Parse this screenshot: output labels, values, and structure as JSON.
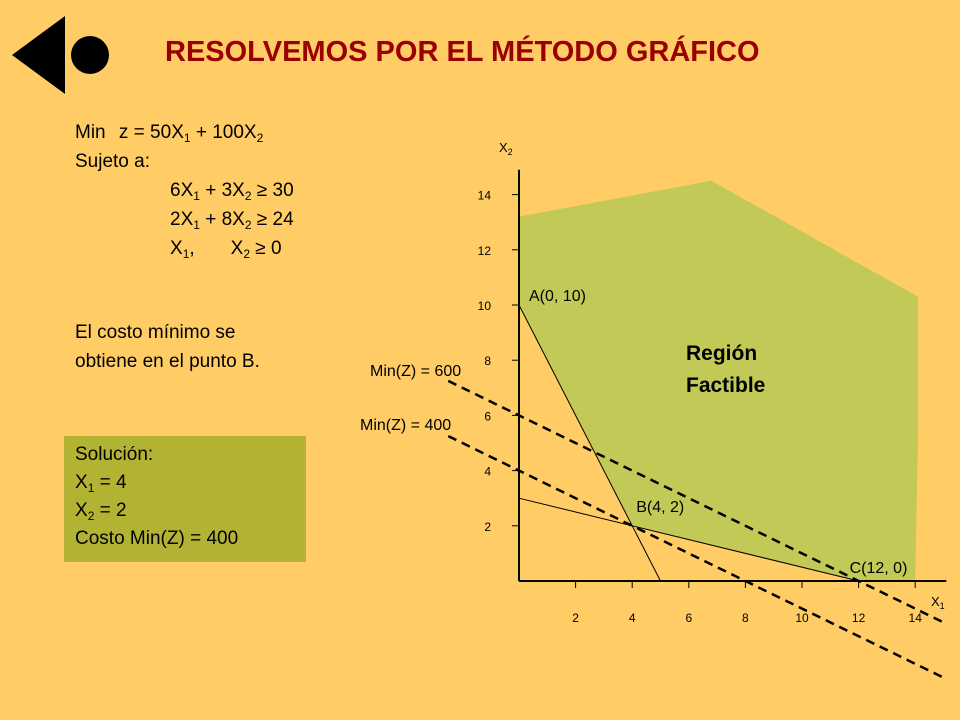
{
  "header": {
    "title": "RESOLVEMOS POR EL MÉTODO GRÁFICO",
    "logo_icon": "back-arrow-circle-icon"
  },
  "model": {
    "objective_prefix": "Min",
    "objective": {
      "lhs": "z = 50X",
      "s1": "1",
      "mid": " + 100X",
      "s2": "2"
    },
    "subject_to": "Sujeto a:",
    "constraint1": {
      "a": "6X",
      "s1": "1",
      "b": " + 3X",
      "s2": "2",
      "rhs": " ≥ 30"
    },
    "constraint2": {
      "a": "2X",
      "s1": "1",
      "b": " + 8X",
      "s2": "2",
      "rhs": " ≥ 24"
    },
    "nonneg": {
      "a": "X",
      "s1": "1",
      "b": ",",
      "c": "X",
      "s2": "2",
      "rhs": " ≥ 0"
    }
  },
  "conclusion": {
    "line1": "El costo mínimo se",
    "line2": "obtiene en el punto B."
  },
  "solution": {
    "heading": "Solución:",
    "x1": {
      "v": "X",
      "s": "1",
      "rhs": " = 4"
    },
    "x2": {
      "v": "X",
      "s": "2",
      "rhs": " = 2"
    },
    "cost": "Costo Min(Z) = 400"
  },
  "chart_data": {
    "type": "line",
    "x_axis_label": {
      "v": "X",
      "s": "1"
    },
    "y_axis_label": {
      "v": "X",
      "s": "2"
    },
    "xlim": [
      0,
      15
    ],
    "ylim": [
      0,
      15
    ],
    "x_ticks": [
      "2",
      "4",
      "6",
      "8",
      "10",
      "12",
      "14"
    ],
    "y_ticks": [
      "2",
      "4",
      "6",
      "8",
      "10",
      "12",
      "14"
    ],
    "feasible_region": {
      "label_line1": "Región",
      "label_line2": "Factible",
      "color": "#C2C957",
      "vertices": [
        [
          0,
          10
        ],
        [
          4,
          2
        ],
        [
          12,
          0
        ],
        [
          14,
          0
        ],
        [
          14.1,
          5.3
        ],
        [
          14.1,
          10.3
        ],
        [
          6.8,
          14.5
        ],
        [
          0,
          13.2
        ]
      ]
    },
    "constraint_lines": [
      {
        "equation": "6X1 + 3X2 = 30",
        "points": [
          [
            0,
            10
          ],
          [
            5,
            0
          ]
        ]
      },
      {
        "equation": "2X1 + 8X2 = 24",
        "points": [
          [
            0,
            3
          ],
          [
            12,
            0
          ]
        ]
      }
    ],
    "iso_cost_lines": [
      {
        "label": "Min(Z) = 600",
        "points": [
          [
            -2.5,
            7.25
          ],
          [
            15,
            -1.5
          ]
        ]
      },
      {
        "label": "Min(Z) = 400",
        "points": [
          [
            -2.5,
            5.25
          ],
          [
            15,
            -3.5
          ]
        ]
      }
    ],
    "points": [
      {
        "label": "A(0, 10)",
        "x": 0,
        "y": 10
      },
      {
        "label": "B(4, 2)",
        "x": 4,
        "y": 2
      },
      {
        "label": "C(12, 0)",
        "x": 12,
        "y": 0
      }
    ],
    "colors": {
      "background": "#FFCC66",
      "region": "#C2C957",
      "solution_box": "#B3B333",
      "title": "#990000"
    }
  }
}
